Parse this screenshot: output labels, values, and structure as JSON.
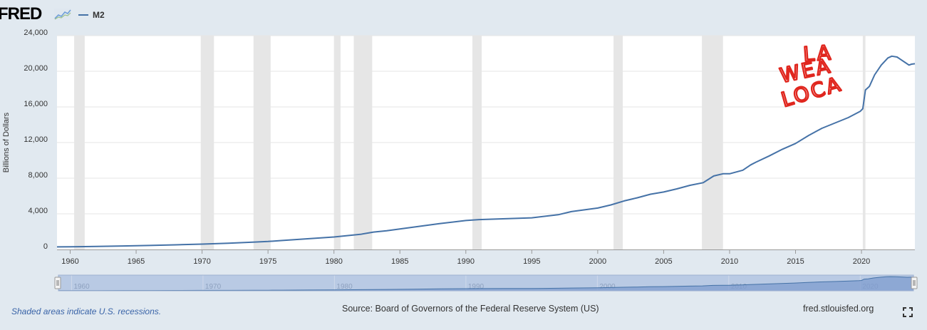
{
  "logo": {
    "text": "FRED",
    "icon": "line-chart-icon"
  },
  "legend": {
    "series_name": "M2",
    "color": "#4572a7"
  },
  "colors": {
    "line": "#4572a7",
    "recession": "#e6e6e6",
    "background": "#e1e9f0",
    "navigator_fill": "#b9cae4",
    "annotation": "#e0261e"
  },
  "annotation": {
    "lines": [
      "LA",
      "WEA",
      "LOCA"
    ]
  },
  "footer": {
    "note": "Shaded areas indicate U.S. recessions.",
    "source": "Source: Board of Governors of the Federal Reserve System (US)",
    "site": "fred.stlouisfed.org"
  },
  "fullscreen": {
    "icon": "fullscreen-icon"
  },
  "chart_data": {
    "type": "line",
    "title": "",
    "ylabel": "Billions of Dollars",
    "xlabel": "",
    "xlim": [
      1959.0,
      2024.05
    ],
    "ylim": [
      0,
      24000
    ],
    "yticks": [
      0,
      4000,
      8000,
      12000,
      16000,
      20000,
      24000
    ],
    "ytick_labels": [
      "0",
      "4,000",
      "8,000",
      "12,000",
      "16,000",
      "20,000",
      "24,000"
    ],
    "xticks": [
      1960,
      1965,
      1970,
      1975,
      1980,
      1985,
      1990,
      1995,
      2000,
      2005,
      2010,
      2015,
      2020
    ],
    "xtick_labels": [
      "1960",
      "1965",
      "1970",
      "1975",
      "1980",
      "1985",
      "1990",
      "1995",
      "2000",
      "2005",
      "2010",
      "2015",
      "2020"
    ],
    "navigator_ticks": [
      1960,
      1970,
      1980,
      1990,
      2000,
      2010,
      2020
    ],
    "navigator_tick_labels": [
      "1960",
      "1970",
      "1980",
      "1990",
      "2000",
      "2010",
      "2020"
    ],
    "grid": true,
    "recessions": [
      [
        1960.3,
        1961.1
      ],
      [
        1969.9,
        1970.9
      ],
      [
        1973.9,
        1975.2
      ],
      [
        1980.0,
        1980.5
      ],
      [
        1981.5,
        1982.9
      ],
      [
        1990.5,
        1991.2
      ],
      [
        2001.2,
        2001.9
      ],
      [
        2007.9,
        2009.5
      ],
      [
        2020.1,
        2020.3
      ]
    ],
    "series": [
      {
        "name": "M2",
        "x": [
          1959.0,
          1960,
          1962,
          1964,
          1966,
          1968,
          1970,
          1972,
          1974,
          1975,
          1976,
          1978,
          1980,
          1982,
          1983,
          1984,
          1986,
          1988,
          1990,
          1991,
          1993,
          1995,
          1997,
          1998,
          2000,
          2001,
          2002,
          2003,
          2004,
          2005,
          2006,
          2007,
          2008,
          2008.8,
          2009.5,
          2010,
          2011,
          2011.6,
          2012,
          2013,
          2014,
          2015,
          2016,
          2017,
          2018,
          2019,
          2019.9,
          2020.1,
          2020.3,
          2020.6,
          2021,
          2021.5,
          2022,
          2022.3,
          2022.7,
          2023,
          2023.3,
          2023.6,
          2023.8,
          2024.05
        ],
        "values": [
          290,
          300,
          340,
          390,
          450,
          520,
          600,
          700,
          830,
          900,
          1000,
          1200,
          1400,
          1700,
          1950,
          2100,
          2500,
          2900,
          3250,
          3350,
          3450,
          3550,
          3900,
          4250,
          4650,
          5000,
          5450,
          5800,
          6200,
          6450,
          6800,
          7200,
          7500,
          8250,
          8500,
          8500,
          8900,
          9500,
          9800,
          10500,
          11250,
          11900,
          12800,
          13600,
          14200,
          14800,
          15500,
          15800,
          17900,
          18300,
          19600,
          20700,
          21500,
          21700,
          21600,
          21300,
          21000,
          20700,
          20800,
          20850
        ]
      }
    ]
  }
}
